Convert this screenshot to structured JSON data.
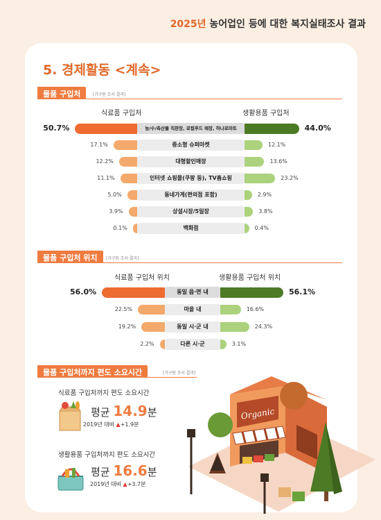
{
  "header": {
    "year": "2025년",
    "title_rest": " 농어업인 등에 대한 복지실태조사 결과"
  },
  "section": {
    "title": "5. 경제활동 <계속>"
  },
  "purchase_place": {
    "title": "물품 구입처",
    "note": "[가구원 조사 결과]",
    "left_label": "식료품 구입처",
    "right_label": "생활용품 구입처",
    "rows": [
      {
        "label": "농/수/축산물 직판장, 로컬푸드 매장, 하나로마트",
        "left": "50.7%",
        "right": "44.0%",
        "lv": 50.7,
        "rv": 44.0
      },
      {
        "label": "중소형 슈퍼마켓",
        "left": "17.1%",
        "right": "12.1%",
        "lv": 17.1,
        "rv": 12.1
      },
      {
        "label": "대형할인매장",
        "left": "12.2%",
        "right": "13.6%",
        "lv": 12.2,
        "rv": 13.6
      },
      {
        "label": "인터넷 쇼핑몰(쿠팡 등), TV홈쇼핑",
        "left": "11.1%",
        "right": "23.2%",
        "lv": 11.1,
        "rv": 23.2
      },
      {
        "label": "동네가게(편의점 포함)",
        "left": "5.0%",
        "right": "2.9%",
        "lv": 5.0,
        "rv": 2.9
      },
      {
        "label": "상설시장/5일장",
        "left": "3.9%",
        "right": "3.8%",
        "lv": 3.9,
        "rv": 3.8
      },
      {
        "label": "백화점",
        "left": "0.1%",
        "right": "0.4%",
        "lv": 0.1,
        "rv": 0.4
      }
    ]
  },
  "purchase_location": {
    "title": "물품 구입처 위치",
    "note": "[가구원 조사 결과]",
    "left_label": "식료품 구입처 위치",
    "right_label": "생활용품 구입처 위치",
    "rows": [
      {
        "label": "동일 읍·면 내",
        "left": "56.0%",
        "right": "56.1%",
        "lv": 56.0,
        "rv": 56.1
      },
      {
        "label": "마을 내",
        "left": "22.5%",
        "right": "16.6%",
        "lv": 22.5,
        "rv": 16.6
      },
      {
        "label": "동일 시·군 내",
        "left": "19.2%",
        "right": "24.3%",
        "lv": 19.2,
        "rv": 24.3
      },
      {
        "label": "다른 시·군",
        "left": "2.2%",
        "right": "3.1%",
        "lv": 2.2,
        "rv": 3.1
      }
    ]
  },
  "travel_time": {
    "title": "물품 구입처까지 편도 소요시간",
    "note": "[가구원 조사 결과]",
    "food": {
      "label": "식료품 구입처까지 편도 소요시간",
      "avg_prefix": "평균 ",
      "value": "14.9",
      "unit": "분",
      "cmp_prefix": "2019년 대비 ",
      "arrow": "▲",
      "delta": "+1.9분"
    },
    "goods": {
      "label": "생활용품 구입처까지 편도 소요시간",
      "avg_prefix": "평균 ",
      "value": "16.6",
      "unit": "분",
      "cmp_prefix": "2019년 대비 ",
      "arrow": "▲",
      "delta": "+3.7분"
    }
  },
  "illustration": {
    "store_sign": "Organic"
  },
  "colors": {
    "accent": "#ef7b3f",
    "food_bar": "#f3a96b",
    "goods_bar": "#acd27e",
    "food_top": "#ee6b31",
    "goods_top": "#4d7a25"
  }
}
